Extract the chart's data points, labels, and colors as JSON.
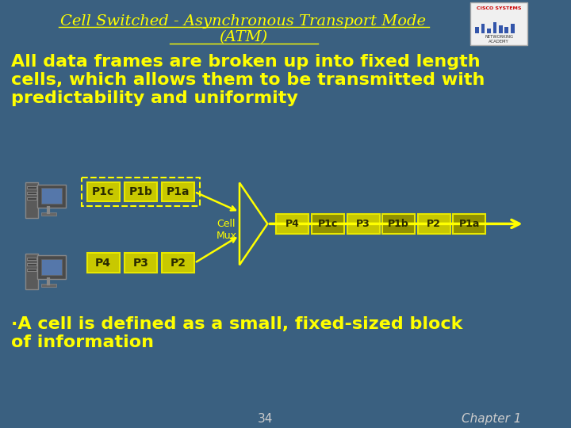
{
  "bg_color": "#3a6080",
  "title_line1": "Cell Switched - Asynchronous Transport Mode",
  "title_line2": "(ATM)",
  "title_color": "#ffff00",
  "title_fontsize": 14,
  "body_text1": "All data frames are broken up into fixed length\ncells, which allows them to be transmitted with\npredictability and uniformity",
  "body_color": "#ffff00",
  "body_fontsize": 16,
  "bullet_text": "·A cell is defined as a small, fixed-sized block\nof information",
  "bullet_color": "#ffff00",
  "bullet_fontsize": 16,
  "top_row_labels": [
    "P1c",
    "P1b",
    "P1a"
  ],
  "bottom_row_labels": [
    "P4",
    "P3",
    "P2"
  ],
  "output_row_labels": [
    "P4",
    "P1c",
    "P3",
    "P1b",
    "P2",
    "P1a"
  ],
  "output_darker": [
    "P1c",
    "P1b",
    "P1a"
  ],
  "box_bg": "#c8c800",
  "box_bg_dark": "#909000",
  "box_edge": "#e8e800",
  "box_text_color": "#2a2a00",
  "cell_mux_text": "Cell\nMux",
  "cell_mux_color": "#ffff00",
  "arrow_color": "#ffff00",
  "dashed_rect_color": "#ffff00",
  "page_num": "34",
  "chapter": "Chapter 1",
  "footer_color": "#cccccc",
  "cisco_bg": "#f0f0f0"
}
